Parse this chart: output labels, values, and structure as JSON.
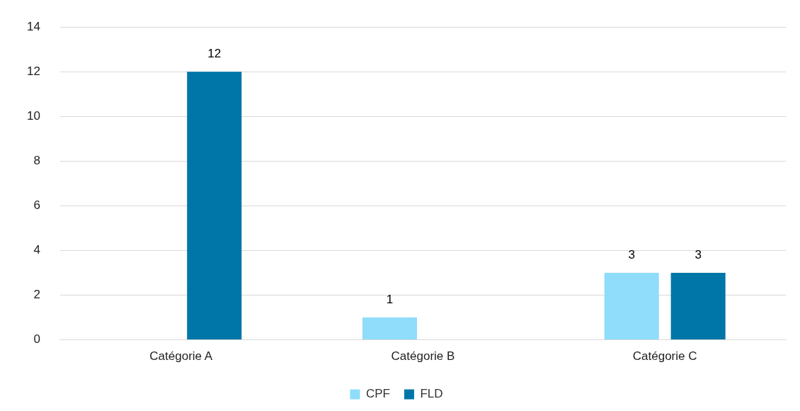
{
  "chart_data": {
    "type": "bar",
    "categories": [
      "Catégorie A",
      "Catégorie B",
      "Catégorie C"
    ],
    "series": [
      {
        "name": "CPF",
        "color": "#8fdcfb",
        "values": [
          null,
          1,
          3
        ]
      },
      {
        "name": "FLD",
        "color": "#0075a8",
        "values": [
          12,
          null,
          3
        ]
      }
    ],
    "ylim": [
      0,
      14
    ],
    "yticks": [
      0,
      2,
      4,
      6,
      8,
      10,
      12,
      14
    ],
    "grid": "y",
    "legend": "bottom",
    "data_labels": true
  }
}
